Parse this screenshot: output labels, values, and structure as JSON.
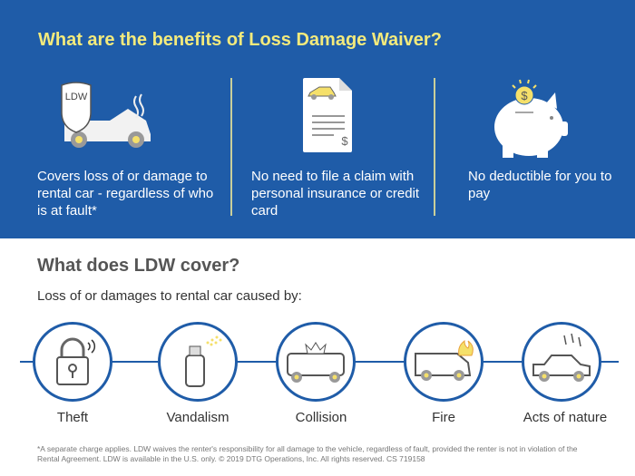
{
  "header": {
    "title": "What are the benefits of Loss Damage Waiver?"
  },
  "benefits": [
    {
      "icon": "shield-car-icon",
      "badge": "LDW",
      "text": "Covers loss of or damage to rental car - regardless of who is at fault*"
    },
    {
      "icon": "document-car-icon",
      "currency": "$",
      "text": "No need to file a claim with personal insurance or credit card"
    },
    {
      "icon": "piggy-bank-icon",
      "currency": "$",
      "text": "No deductible for you to pay"
    }
  ],
  "coverage": {
    "title": "What does LDW cover?",
    "subtitle": "Loss of or damages to rental car caused by:",
    "items": [
      {
        "icon": "padlock-icon",
        "label": "Theft"
      },
      {
        "icon": "spray-can-icon",
        "label": "Vandalism"
      },
      {
        "icon": "collision-icon",
        "label": "Collision"
      },
      {
        "icon": "fire-van-icon",
        "label": "Fire"
      },
      {
        "icon": "hail-car-icon",
        "label": "Acts of nature"
      }
    ]
  },
  "footnote": "*A separate charge applies. LDW waives the renter's responsibility for all damage to the vehicle, regardless of fault, provided the renter is not in violation of the Rental Agreement. LDW is available in the U.S. only. © 2019 DTG Operations, Inc. All rights reserved. CS 719158",
  "colors": {
    "brand_blue": "#1f5ca8",
    "title_yellow": "#f3ea7c",
    "accent_yellow": "#f5e06a"
  }
}
